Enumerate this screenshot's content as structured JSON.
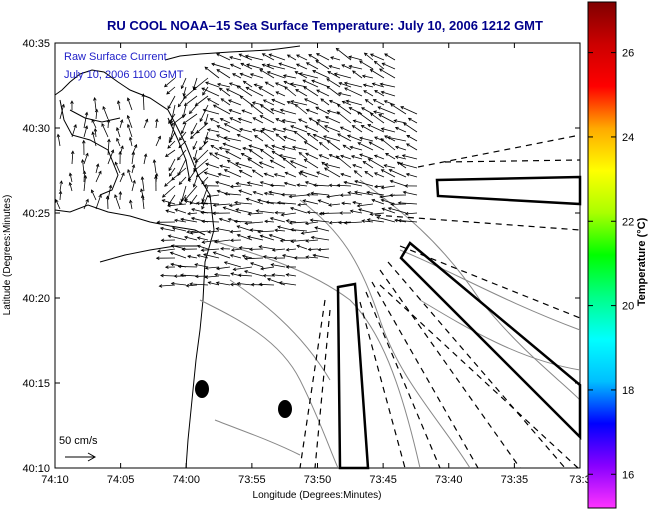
{
  "title": "RU COOL  NOAA–15  Sea Surface Temperature:  July 10, 2006 1212 GMT",
  "map": {
    "xlabel": "Longitude (Degrees:Minutes)",
    "ylabel": "Latitude (Degrees:Minutes)",
    "x_ticks": [
      "74:10",
      "74:05",
      "74:00",
      "73:55",
      "73:50",
      "73:45",
      "73:40",
      "73:35",
      "73:3"
    ],
    "y_ticks": [
      "40:35",
      "40:30",
      "40:25",
      "40:20",
      "40:15",
      "40:10"
    ],
    "legend_line1": "Raw Surface Current",
    "legend_line2": "July 10, 2006 1100 GMT",
    "scale_label": "50 cm/s"
  },
  "colorbar": {
    "title": "Temperature (°C)",
    "ticks": [
      "26",
      "24",
      "22",
      "20",
      "18",
      "16"
    ],
    "range": [
      15.2,
      27.2
    ],
    "colors": [
      "#ff33ff",
      "#8800ff",
      "#0000ff",
      "#00bfff",
      "#00ffff",
      "#00ff88",
      "#00ff00",
      "#aaff00",
      "#ffff00",
      "#ffaa00",
      "#ff0000",
      "#cc0000",
      "#800000"
    ]
  },
  "chart_data": {
    "type": "map",
    "title": "RU COOL  NOAA–15  Sea Surface Temperature:  July 10, 2006 1212 GMT",
    "xlabel": "Longitude (Degrees:Minutes)",
    "ylabel": "Latitude (Degrees:Minutes)",
    "x_ticks": [
      "74:10",
      "74:05",
      "74:00",
      "73:55",
      "73:50",
      "73:45",
      "73:40",
      "73:35",
      "73:3"
    ],
    "y_ticks": [
      "40:35",
      "40:30",
      "40:25",
      "40:20",
      "40:15",
      "40:10"
    ],
    "colorbar_range_c": [
      15.2,
      27.2
    ],
    "colorbar_ticks_c": [
      16,
      18,
      20,
      22,
      24,
      26
    ]
  }
}
